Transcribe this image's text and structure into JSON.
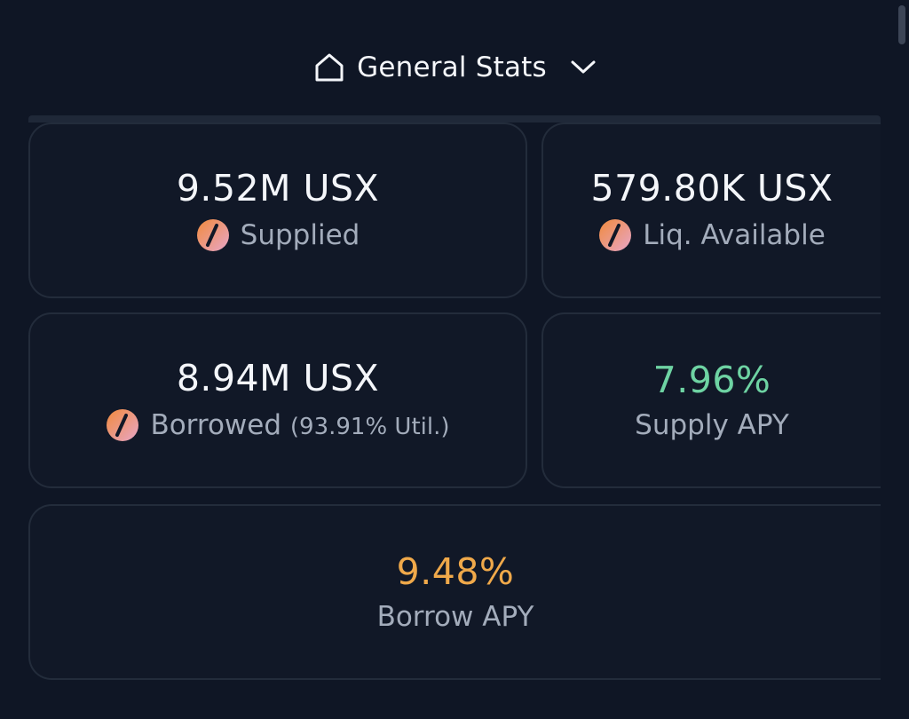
{
  "header": {
    "title": "General Stats",
    "home_icon": "home-icon",
    "chevron_icon": "chevron-down-icon"
  },
  "stats": {
    "supplied": {
      "value": "9.52M USX",
      "label": "Supplied",
      "icon": "usx-token-icon"
    },
    "liquidity": {
      "value": "579.80K USX",
      "label": "Liq. Available",
      "icon": "usx-token-icon"
    },
    "borrowed": {
      "value": "8.94M USX",
      "label": "Borrowed",
      "util": "(93.91% Util.)",
      "icon": "usx-token-icon"
    },
    "supply_apy": {
      "value": "7.96%",
      "label": "Supply APY"
    },
    "borrow_apy": {
      "value": "9.48%",
      "label": "Borrow APY"
    }
  },
  "colors": {
    "background": "#0f1625",
    "card_border": "#232c3b",
    "supply_apy": "#6ed3a3",
    "borrow_apy": "#f0a94a",
    "token_icon_orange": "#f08a3c",
    "token_icon_pink": "#e8a6c8"
  }
}
